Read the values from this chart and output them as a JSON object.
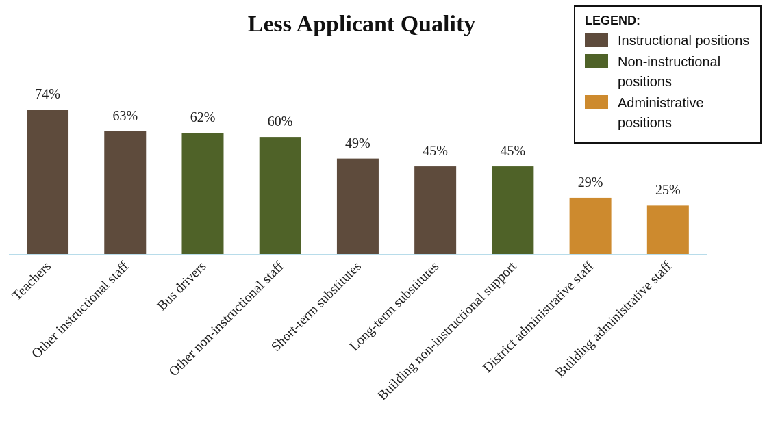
{
  "chart_data": {
    "type": "bar",
    "title": "Less Applicant Quality",
    "legend_title": "LEGEND:",
    "legend": "top right",
    "stacked": true,
    "tick_labels": "x",
    "categories": [
      "Teachers",
      "Other instructional staff",
      "Bus drivers",
      "Other non-instructional staff",
      "Short-term substitutes",
      "Long-term substitutes",
      "Building non-instructional support",
      "District administrative staff",
      "Building administrative staff"
    ],
    "series": [
      {
        "name": "Instructional positions",
        "color": "#5e4b3c",
        "values": [
          74,
          63,
          null,
          null,
          49,
          45,
          null,
          null,
          null
        ],
        "value_labels": [
          "74%",
          "63%",
          null,
          null,
          "49%",
          "45%",
          null,
          null,
          null
        ]
      },
      {
        "name": "Non-instructional positions",
        "color": "#4f6228",
        "values": [
          null,
          null,
          62,
          60,
          null,
          null,
          45,
          null,
          null
        ],
        "value_labels": [
          null,
          null,
          "62%",
          "60%",
          null,
          null,
          "45%",
          null,
          null
        ]
      },
      {
        "name": "Administrative positions",
        "color": "#cd8a2e",
        "values": [
          null,
          null,
          null,
          null,
          null,
          null,
          null,
          29,
          25
        ],
        "value_labels": [
          null,
          null,
          null,
          null,
          null,
          null,
          null,
          "29%",
          "25%"
        ]
      }
    ]
  }
}
